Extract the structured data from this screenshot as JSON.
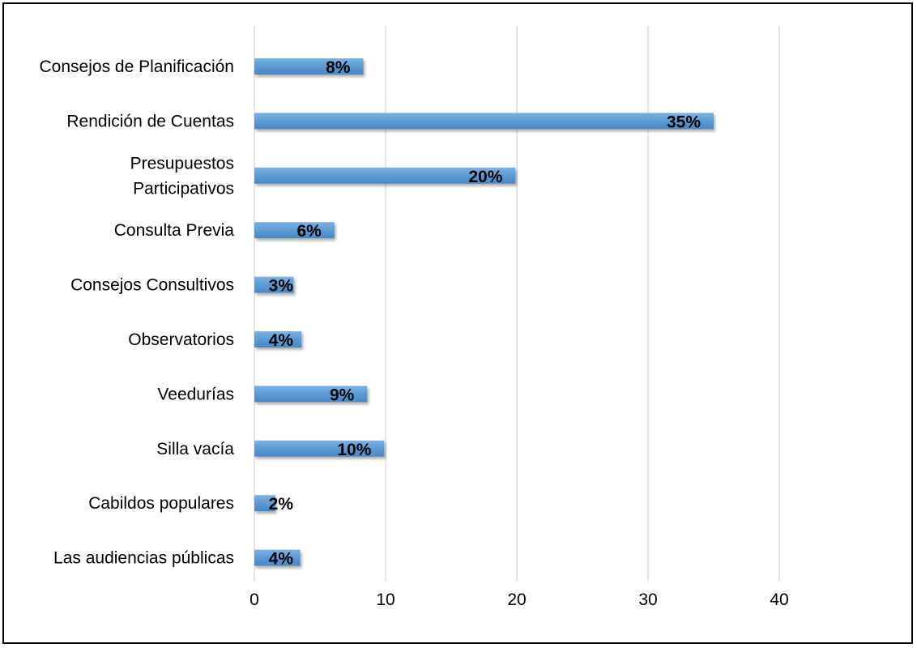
{
  "chart_data": {
    "type": "bar",
    "orientation": "horizontal",
    "categories": [
      [
        "Consejos de Planificación"
      ],
      [
        "Rendición de Cuentas"
      ],
      [
        "Presupuestos",
        "Participativos"
      ],
      [
        "Consulta Previa"
      ],
      [
        "Consejos Consultivos"
      ],
      [
        "Observatorios"
      ],
      [
        "Veedurías"
      ],
      [
        "Silla vacía"
      ],
      [
        "Cabildos populares"
      ],
      [
        "Las audiencias públicas"
      ]
    ],
    "values": [
      8.3,
      35,
      19.9,
      6.1,
      3,
      3.6,
      8.6,
      9.9,
      1.6,
      3.5
    ],
    "data_labels": [
      "8%",
      "35%",
      "20%",
      "6%",
      "3%",
      "4%",
      "9%",
      "10%",
      "2%",
      "4%"
    ],
    "xticks": [
      "0",
      "10",
      "20",
      "30",
      "40"
    ],
    "xlim": [
      0,
      50
    ],
    "grid": "vertical",
    "bar_color": "#5b9bd5",
    "title": "",
    "xlabel": "",
    "ylabel": ""
  }
}
